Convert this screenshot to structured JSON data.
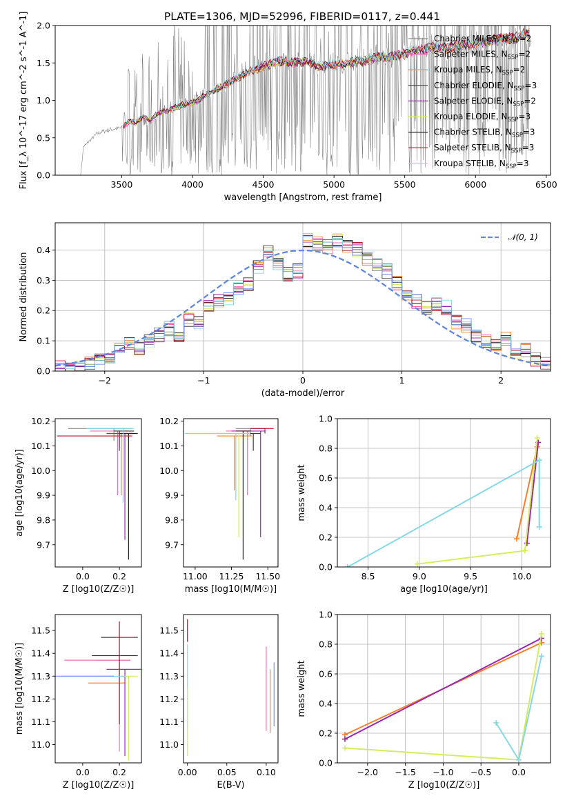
{
  "figure": {
    "title": "PLATE=1306, MJD=52996, FIBERID=0117, z=0.441"
  },
  "chart_data": [
    {
      "id": "spectrum",
      "type": "line",
      "xlabel": "wavelength [Angstrom, rest frame]",
      "ylabel": "Flux [f_λ 10^-17 erg cm^-2 s^-1 A^-1]",
      "xlim": [
        3030,
        6530
      ],
      "ylim": [
        0,
        2.0
      ],
      "xticks": [
        3500,
        4000,
        4500,
        5000,
        5500,
        6000,
        6500
      ],
      "yticks": [
        0.0,
        0.5,
        1.0,
        1.5,
        2.0
      ],
      "legend_position": "upper right",
      "data_series": {
        "name": "",
        "color": "#808080",
        "x": [
          3210,
          3230,
          3280,
          3320,
          3360,
          3400,
          3450,
          3500,
          3550,
          3600,
          3650,
          3700,
          3750,
          3800,
          3850,
          3900,
          3950,
          4000,
          4100,
          4200,
          4300,
          4400,
          4500,
          4600,
          4700,
          4800,
          4900,
          5000,
          5100,
          5200,
          5300,
          5400,
          5500,
          5600,
          5700,
          5800,
          5900,
          6000,
          6100,
          6200,
          6300,
          6390
        ],
        "y": [
          0,
          0.38,
          0.47,
          0.55,
          0.58,
          0.6,
          0.62,
          0.63,
          0.65,
          0.75,
          0.7,
          0.72,
          0.8,
          0.85,
          0.9,
          0.92,
          0.95,
          1.0,
          1.1,
          1.2,
          1.3,
          1.45,
          1.48,
          1.55,
          1.5,
          1.55,
          1.45,
          1.5,
          1.52,
          1.55,
          1.6,
          1.58,
          1.65,
          1.7,
          1.72,
          1.7,
          1.75,
          1.78,
          1.8,
          1.82,
          1.86,
          1.9
        ]
      },
      "models": [
        {
          "name": "Chabrier MILES",
          "nssp": "2",
          "color": "#8c8c8c"
        },
        {
          "name": "Salpeter MILES",
          "nssp": "2",
          "color": "#ff69b4"
        },
        {
          "name": "Kroupa MILES",
          "nssp": "2",
          "color": "#f4802a"
        },
        {
          "name": "Chabrier ELODIE",
          "nssp": "3",
          "color": "#3a3a3a"
        },
        {
          "name": "Salpeter ELODIE",
          "nssp": "2",
          "color": "#9b27af"
        },
        {
          "name": "Kroupa ELODIE",
          "nssp": "3",
          "color": "#d4ed5a"
        },
        {
          "name": "Chabrier STELIB",
          "nssp": "3",
          "color": "#202020"
        },
        {
          "name": "Salpeter STELIB",
          "nssp": "3",
          "color": "#c0102c"
        },
        {
          "name": "Kroupa STELIB",
          "nssp": "3",
          "color": "#86d8e6"
        }
      ],
      "model_x": [
        3510,
        3560,
        3600,
        3650,
        3700,
        3750,
        3800,
        3850,
        3900,
        3950,
        4000,
        4100,
        4200,
        4300,
        4400,
        4500,
        4600,
        4700,
        4800,
        4900,
        5000,
        5100,
        5200,
        5300,
        5400,
        5500,
        5600,
        5700,
        5800,
        5900,
        6000,
        6100,
        6200,
        6300,
        6380
      ],
      "model_y": [
        0.65,
        0.72,
        0.7,
        0.78,
        0.72,
        0.82,
        0.85,
        0.88,
        0.92,
        0.95,
        0.96,
        1.08,
        1.18,
        1.28,
        1.38,
        1.45,
        1.52,
        1.5,
        1.52,
        1.45,
        1.48,
        1.5,
        1.52,
        1.58,
        1.58,
        1.62,
        1.68,
        1.7,
        1.7,
        1.74,
        1.76,
        1.8,
        1.82,
        1.85,
        1.9
      ]
    },
    {
      "id": "residuals",
      "type": "line",
      "xlabel": "(data-model)/error",
      "ylabel": "Normed distribution",
      "xlim": [
        -2.5,
        2.5
      ],
      "ylim": [
        0,
        0.49
      ],
      "xticks": [
        -2,
        -1,
        0,
        1,
        2
      ],
      "yticks": [
        0.0,
        0.1,
        0.2,
        0.3,
        0.4
      ],
      "grid": true,
      "legend_position": "upper right",
      "gaussian": {
        "name": "𝒩(0, 1)",
        "color": "#5f87dc",
        "mean": 0,
        "sigma": 1
      },
      "bin_edges": [
        -2.5,
        -2.4,
        -2.3,
        -2.2,
        -2.1,
        -2.0,
        -1.9,
        -1.8,
        -1.7,
        -1.6,
        -1.5,
        -1.4,
        -1.3,
        -1.2,
        -1.1,
        -1.0,
        -0.9,
        -0.8,
        -0.7,
        -0.6,
        -0.5,
        -0.4,
        -0.3,
        -0.2,
        -0.1,
        0.0,
        0.1,
        0.2,
        0.3,
        0.4,
        0.5,
        0.6,
        0.7,
        0.8,
        0.9,
        1.0,
        1.1,
        1.2,
        1.3,
        1.4,
        1.5,
        1.6,
        1.7,
        1.8,
        1.9,
        2.0,
        2.1,
        2.2,
        2.3,
        2.4,
        2.5
      ],
      "histogram": [
        0.01,
        0.01,
        0.02,
        0.03,
        0.04,
        0.05,
        0.07,
        0.09,
        0.07,
        0.1,
        0.12,
        0.14,
        0.12,
        0.17,
        0.16,
        0.21,
        0.23,
        0.24,
        0.27,
        0.29,
        0.34,
        0.39,
        0.36,
        0.32,
        0.33,
        0.43,
        0.42,
        0.41,
        0.43,
        0.41,
        0.4,
        0.37,
        0.35,
        0.33,
        0.29,
        0.25,
        0.23,
        0.21,
        0.22,
        0.21,
        0.16,
        0.15,
        0.12,
        0.1,
        0.09,
        0.11,
        0.06,
        0.07,
        0.04,
        0.03
      ],
      "histogram_colors": [
        "#8c8c8c",
        "#ff69b4",
        "#f4802a",
        "#3a3a3a",
        "#9b27af",
        "#d4ed5a",
        "#202020",
        "#c0102c",
        "#86d8e6",
        "#6f8ef0"
      ]
    },
    {
      "id": "age-vs-z",
      "type": "scatter",
      "xlabel": "Z [log10(Z/Z☉)]",
      "ylabel": "age  [log10(age/yr)]",
      "xlim": [
        -0.15,
        0.32
      ],
      "ylim": [
        9.61,
        10.21
      ],
      "xticks": [
        0.0,
        0.2
      ],
      "yticks": [
        9.7,
        9.8,
        9.9,
        10.0,
        10.1,
        10.2
      ],
      "points": [
        {
          "x": 0.17,
          "y": 10.17,
          "xerr": [
            0.25,
            0.1
          ],
          "yerr": [
            0.05,
            0.0
          ],
          "color": "#8c8c8c"
        },
        {
          "x": 0.19,
          "y": 10.16,
          "xerr": [
            0.15,
            0.05
          ],
          "yerr": [
            0.26,
            0.0
          ],
          "color": "#ff69b4"
        },
        {
          "x": 0.21,
          "y": 10.15,
          "xerr": [
            0.08,
            0.06
          ],
          "yerr": [
            0.25,
            0.0
          ],
          "color": "#f4802a"
        },
        {
          "x": 0.2,
          "y": 10.16,
          "xerr": [
            0.03,
            0.08
          ],
          "yerr": [
            0.08,
            0.0
          ],
          "color": "#3a3a3a"
        },
        {
          "x": 0.23,
          "y": 10.15,
          "xerr": [
            0.1,
            0.05
          ],
          "yerr": [
            0.43,
            0.0
          ],
          "color": "#9b27af"
        },
        {
          "x": 0.25,
          "y": 10.14,
          "xerr": [
            0.2,
            0.0
          ],
          "yerr": [
            0.42,
            0.0
          ],
          "color": "#d4ed5a"
        },
        {
          "x": 0.25,
          "y": 10.15,
          "xerr": [
            0.05,
            0.05
          ],
          "yerr": [
            0.51,
            0.0
          ],
          "color": "#202020"
        },
        {
          "x": 0.21,
          "y": 10.14,
          "xerr": [
            0.35,
            0.06
          ],
          "yerr": [
            0.0,
            0.0
          ],
          "color": "#c0102c"
        },
        {
          "x": 0.22,
          "y": 10.17,
          "xerr": [
            0.2,
            0.06
          ],
          "yerr": [
            0.3,
            0.0
          ],
          "color": "#86d8e6"
        }
      ]
    },
    {
      "id": "age-vs-mass",
      "type": "scatter",
      "xlabel": "mass [log10(M/M☉)]",
      "ylabel": "",
      "xlim": [
        10.92,
        11.57
      ],
      "ylim": [
        9.61,
        10.21
      ],
      "xticks": [
        11.0,
        11.25,
        11.5
      ],
      "xticklabels": [
        "11.00",
        "11.25",
        "11.50"
      ],
      "yticks": [
        9.7,
        9.8,
        9.9,
        10.0,
        10.1,
        10.2
      ],
      "points": [
        {
          "x": 11.38,
          "y": 10.17,
          "xerr": [
            0.1,
            0.1
          ],
          "yerr": [
            0.03,
            0.0
          ],
          "color": "#8c8c8c"
        },
        {
          "x": 11.36,
          "y": 10.16,
          "xerr": [
            0.15,
            0.03
          ],
          "yerr": [
            0.26,
            0.0
          ],
          "color": "#ff69b4"
        },
        {
          "x": 11.27,
          "y": 10.14,
          "xerr": [
            0.12,
            0.12
          ],
          "yerr": [
            0.22,
            0.0
          ],
          "color": "#f4802a"
        },
        {
          "x": 11.4,
          "y": 10.15,
          "xerr": [
            0.05,
            0.05
          ],
          "yerr": [
            0.07,
            0.0
          ],
          "color": "#3a3a3a"
        },
        {
          "x": 11.45,
          "y": 10.16,
          "xerr": [
            0.2,
            0.03
          ],
          "yerr": [
            0.43,
            0.0
          ],
          "color": "#9b27af"
        },
        {
          "x": 11.3,
          "y": 10.15,
          "xerr": [
            0.35,
            0.05
          ],
          "yerr": [
            0.42,
            0.0
          ],
          "color": "#d4ed5a"
        },
        {
          "x": 11.33,
          "y": 10.16,
          "xerr": [
            0.05,
            0.05
          ],
          "yerr": [
            0.52,
            0.0
          ],
          "color": "#202020"
        },
        {
          "x": 11.48,
          "y": 10.17,
          "xerr": [
            0.1,
            0.06
          ],
          "yerr": [
            0.02,
            0.0
          ],
          "color": "#c0102c"
        },
        {
          "x": 11.28,
          "y": 10.15,
          "xerr": [
            0.35,
            0.1
          ],
          "yerr": [
            0.27,
            0.0
          ],
          "color": "#86d8e6"
        }
      ]
    },
    {
      "id": "weight-vs-age",
      "type": "line",
      "xlabel": "age  [log10(age/yr)]",
      "ylabel": "mass weight",
      "xlim": [
        8.2,
        10.28
      ],
      "ylim": [
        0,
        1.0
      ],
      "xticks": [
        8.5,
        9.0,
        9.5,
        10.0
      ],
      "yticks": [
        0.0,
        0.2,
        0.4,
        0.6,
        0.8,
        1.0
      ],
      "grid": true,
      "series": [
        {
          "color": "#f4802a",
          "x": [
            9.95,
            10.15
          ],
          "y": [
            0.19,
            0.81
          ]
        },
        {
          "color": "#9b27af",
          "x": [
            10.05,
            10.16
          ],
          "y": [
            0.16,
            0.84
          ]
        },
        {
          "color": "#d4ed5a",
          "x": [
            8.98,
            10.03,
            10.15
          ],
          "y": [
            0.02,
            0.11,
            0.87
          ]
        },
        {
          "color": "#86d8e6",
          "x": [
            8.3,
            10.17,
            10.17
          ],
          "y": [
            0.0,
            0.72,
            0.27
          ]
        }
      ]
    },
    {
      "id": "mass-vs-z",
      "type": "scatter",
      "xlabel": "Z [log10(Z/Z☉)]",
      "ylabel": "mass [log10(M/M☉)]",
      "xlim": [
        -0.15,
        0.32
      ],
      "ylim": [
        10.92,
        11.57
      ],
      "xticks": [
        0.0,
        0.2
      ],
      "yticks": [
        11.0,
        11.1,
        11.2,
        11.3,
        11.4,
        11.5
      ],
      "points": [
        {
          "x": 0.18,
          "y": 11.37,
          "xerr": [
            0.1,
            0.08
          ],
          "yerr": [
            0.0,
            0.0
          ],
          "color": "#8c8c8c"
        },
        {
          "x": 0.2,
          "y": 11.37,
          "xerr": [
            0.3,
            0.05
          ],
          "yerr": [
            0.4,
            0.0
          ],
          "color": "#ff69b4"
        },
        {
          "x": 0.08,
          "y": 11.27,
          "xerr": [
            0.05,
            0.15
          ],
          "yerr": [
            0.0,
            0.0
          ],
          "color": "#f4802a"
        },
        {
          "x": 0.2,
          "y": 11.39,
          "xerr": [
            0.15,
            0.1
          ],
          "yerr": [
            0.0,
            0.0
          ],
          "color": "#3a3a3a"
        },
        {
          "x": 0.23,
          "y": 11.33,
          "xerr": [
            0.1,
            0.1
          ],
          "yerr": [
            0.38,
            0.0
          ],
          "color": "#9b27af"
        },
        {
          "x": 0.25,
          "y": 11.3,
          "xerr": [
            0.15,
            0.05
          ],
          "yerr": [
            0.37,
            0.0
          ],
          "color": "#d4ed5a"
        },
        {
          "x": 0.22,
          "y": 11.47,
          "xerr": [
            0.12,
            0.08
          ],
          "yerr": [
            0.0,
            0.0
          ],
          "color": "#202020"
        },
        {
          "x": 0.2,
          "y": 11.47,
          "xerr": [
            0.02,
            0.08
          ],
          "yerr": [
            0.38,
            0.07
          ],
          "color": "#c0102c"
        },
        {
          "x": 0.18,
          "y": 11.3,
          "xerr": [
            0.3,
            0.05
          ],
          "yerr": [
            0.0,
            0.0
          ],
          "color": "#86d8e6"
        },
        {
          "x": 0.05,
          "y": 11.3,
          "xerr": [
            0.2,
            0.12
          ],
          "yerr": [
            0.0,
            0.0
          ],
          "color": "#6f8ef0"
        }
      ]
    },
    {
      "id": "mass-vs-ebv",
      "type": "scatter",
      "xlabel": "E(B-V)",
      "ylabel": "",
      "xlim": [
        -0.005,
        0.115
      ],
      "ylim": [
        10.92,
        11.57
      ],
      "xticks": [
        0.0,
        0.05,
        0.1
      ],
      "xticklabels": [
        "0.00",
        "0.05",
        "0.10"
      ],
      "yticks": [
        11.0,
        11.1,
        11.2,
        11.3,
        11.4,
        11.5
      ],
      "points": [
        {
          "x": 0.0,
          "y": 11.45,
          "xerr": [
            0,
            0
          ],
          "yerr": [
            0.0,
            0.1
          ],
          "color": "#c0102c"
        },
        {
          "x": 0.0,
          "y": 11.32,
          "xerr": [
            0,
            0
          ],
          "yerr": [
            0.25,
            0.12
          ],
          "color": "#86d8e6"
        },
        {
          "x": 0.0,
          "y": 11.2,
          "xerr": [
            0,
            0
          ],
          "yerr": [
            0.25,
            0.05
          ],
          "color": "#d4ed5a"
        },
        {
          "x": 0.1,
          "y": 11.33,
          "xerr": [
            0,
            0
          ],
          "yerr": [
            0.27,
            0.1
          ],
          "color": "#ff69b4"
        },
        {
          "x": 0.105,
          "y": 11.2,
          "xerr": [
            0,
            0
          ],
          "yerr": [
            0.15,
            0.13
          ],
          "color": "#f4802a"
        },
        {
          "x": 0.11,
          "y": 11.25,
          "xerr": [
            0,
            0
          ],
          "yerr": [
            0.17,
            0.11
          ],
          "color": "#6f8ef0"
        }
      ]
    },
    {
      "id": "weight-vs-z",
      "type": "line",
      "xlabel": "Z [log10(Z/Z☉)]",
      "ylabel": "mass weight",
      "xlim": [
        -2.4,
        0.42
      ],
      "ylim": [
        0,
        1.0
      ],
      "xticks": [
        -2.0,
        -1.5,
        -1.0,
        -0.5,
        0.0
      ],
      "yticks": [
        0.0,
        0.2,
        0.4,
        0.6,
        0.8,
        1.0
      ],
      "grid": true,
      "series": [
        {
          "color": "#f4802a",
          "x": [
            -2.3,
            0.3
          ],
          "y": [
            0.19,
            0.81
          ]
        },
        {
          "color": "#9b27af",
          "x": [
            -2.3,
            0.3
          ],
          "y": [
            0.16,
            0.84
          ]
        },
        {
          "color": "#d4ed5a",
          "x": [
            -2.3,
            0.0,
            0.3
          ],
          "y": [
            0.1,
            0.02,
            0.87
          ]
        },
        {
          "color": "#86d8e6",
          "x": [
            -0.3,
            0.0,
            0.3
          ],
          "y": [
            0.27,
            0.02,
            0.72
          ]
        }
      ]
    }
  ]
}
